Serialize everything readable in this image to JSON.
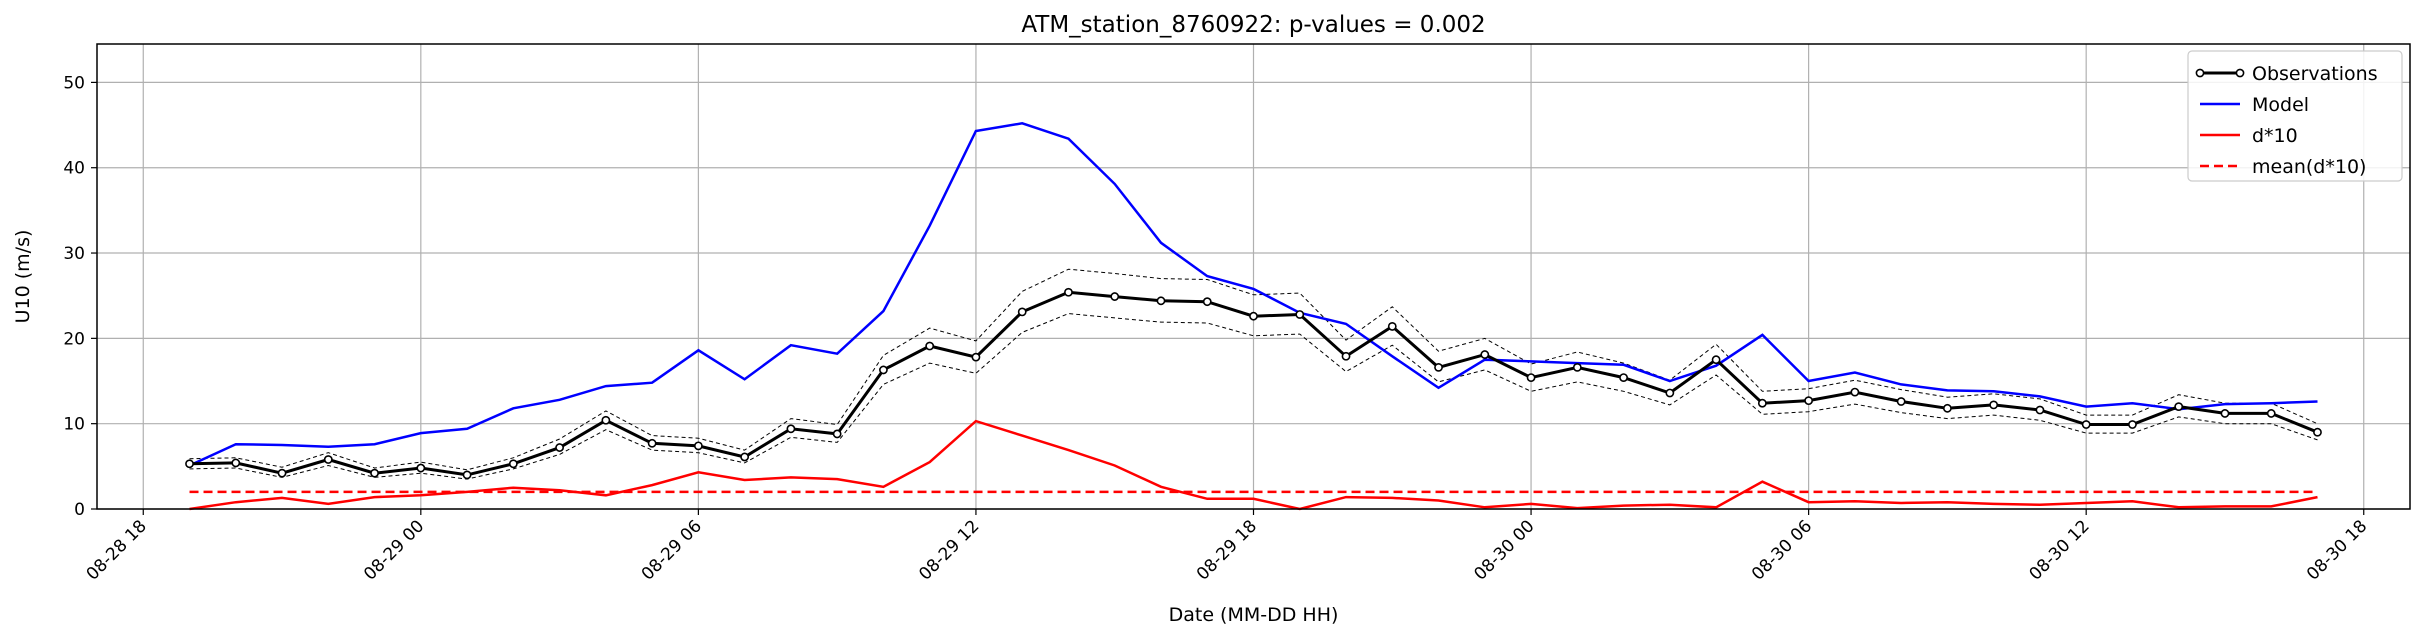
{
  "chart_data": {
    "type": "line",
    "title": "ATM_station_8760922: p-values = 0.002",
    "xlabel": "Date (MM-DD HH)",
    "ylabel": "U10 (m/s)",
    "ylim": [
      0,
      54.5
    ],
    "xlim": [
      "08-28 17:00",
      "08-30 19:00"
    ],
    "yticks": [
      0,
      10,
      20,
      30,
      40,
      50
    ],
    "xticks": [
      "08-28 18",
      "08-29 00",
      "08-29 06",
      "08-29 12",
      "08-29 18",
      "08-30 00",
      "08-30 06",
      "08-30 12",
      "08-30 18"
    ],
    "grid": true,
    "legend_position": "top-right",
    "x_start": "08-28 19:00",
    "x_step_hours": 1,
    "series": [
      {
        "name": "Observations",
        "color": "#000000",
        "style": "solid-with-markers",
        "values": [
          5.3,
          5.4,
          4.2,
          5.8,
          4.2,
          4.8,
          4.0,
          5.3,
          7.2,
          10.4,
          7.7,
          7.4,
          6.1,
          9.4,
          8.8,
          16.3,
          19.1,
          17.8,
          23.1,
          25.4,
          24.9,
          24.4,
          24.3,
          22.6,
          22.8,
          17.9,
          21.4,
          16.6,
          18.1,
          15.4,
          16.6,
          15.4,
          13.6,
          17.5,
          12.4,
          12.7,
          13.7,
          12.6,
          11.8,
          12.2,
          11.6,
          9.9,
          9.9,
          12.0,
          11.2,
          11.2,
          9.0
        ]
      },
      {
        "name": "Model",
        "color": "#0000ff",
        "style": "solid",
        "values": [
          5.1,
          7.6,
          7.5,
          7.3,
          7.6,
          8.9,
          9.4,
          11.8,
          12.8,
          14.4,
          14.8,
          18.6,
          15.2,
          19.2,
          18.2,
          23.2,
          33.2,
          44.3,
          45.2,
          43.4,
          38.1,
          31.2,
          27.3,
          25.8,
          23.0,
          21.7,
          17.9,
          14.2,
          17.5,
          17.3,
          17.1,
          16.9,
          15.0,
          16.8,
          20.4,
          15.0,
          16.0,
          14.6,
          13.9,
          13.8,
          13.2,
          12.0,
          12.4,
          11.7,
          12.3,
          12.4,
          12.6
        ]
      },
      {
        "name": "d*10",
        "color": "#ff0000",
        "style": "solid",
        "values": [
          0.0,
          0.8,
          1.3,
          0.6,
          1.4,
          1.6,
          2.0,
          2.5,
          2.2,
          1.6,
          2.8,
          4.3,
          3.4,
          3.7,
          3.5,
          2.6,
          5.5,
          10.3,
          8.6,
          6.9,
          5.1,
          2.6,
          1.2,
          1.2,
          0.0,
          1.4,
          1.3,
          1.0,
          0.2,
          0.6,
          0.1,
          0.4,
          0.5,
          0.2,
          3.2,
          0.8,
          0.9,
          0.7,
          0.8,
          0.6,
          0.5,
          0.7,
          0.9,
          0.2,
          0.3,
          0.3,
          1.4
        ]
      },
      {
        "name": "mean(d*10)",
        "color": "#ff0000",
        "style": "dashed",
        "values": [
          2.0,
          2.0
        ]
      }
    ],
    "envelope": {
      "color": "#000000",
      "style": "thin-dashed",
      "upper": [
        5.9,
        6.0,
        4.9,
        6.6,
        4.8,
        5.5,
        4.6,
        6.0,
        8.2,
        11.5,
        8.6,
        8.3,
        6.9,
        10.6,
        9.9,
        18.0,
        21.2,
        19.7,
        25.5,
        28.1,
        27.6,
        27.0,
        26.9,
        25.1,
        25.3,
        19.8,
        23.7,
        18.5,
        20.0,
        17.0,
        18.4,
        17.1,
        15.1,
        19.3,
        13.8,
        14.1,
        15.1,
        14.0,
        13.1,
        13.5,
        12.9,
        11.0,
        11.0,
        13.4,
        12.4,
        12.4,
        10.0
      ],
      "lower": [
        4.7,
        4.8,
        3.7,
        5.1,
        3.7,
        4.2,
        3.5,
        4.7,
        6.4,
        9.3,
        6.9,
        6.6,
        5.4,
        8.4,
        7.8,
        14.6,
        17.1,
        15.9,
        20.7,
        22.9,
        22.4,
        21.9,
        21.8,
        20.3,
        20.5,
        16.1,
        19.2,
        14.9,
        16.3,
        13.8,
        14.9,
        13.8,
        12.2,
        15.7,
        11.1,
        11.4,
        12.3,
        11.3,
        10.6,
        11.0,
        10.4,
        8.9,
        8.9,
        10.8,
        10.0,
        10.0,
        8.1
      ]
    }
  }
}
